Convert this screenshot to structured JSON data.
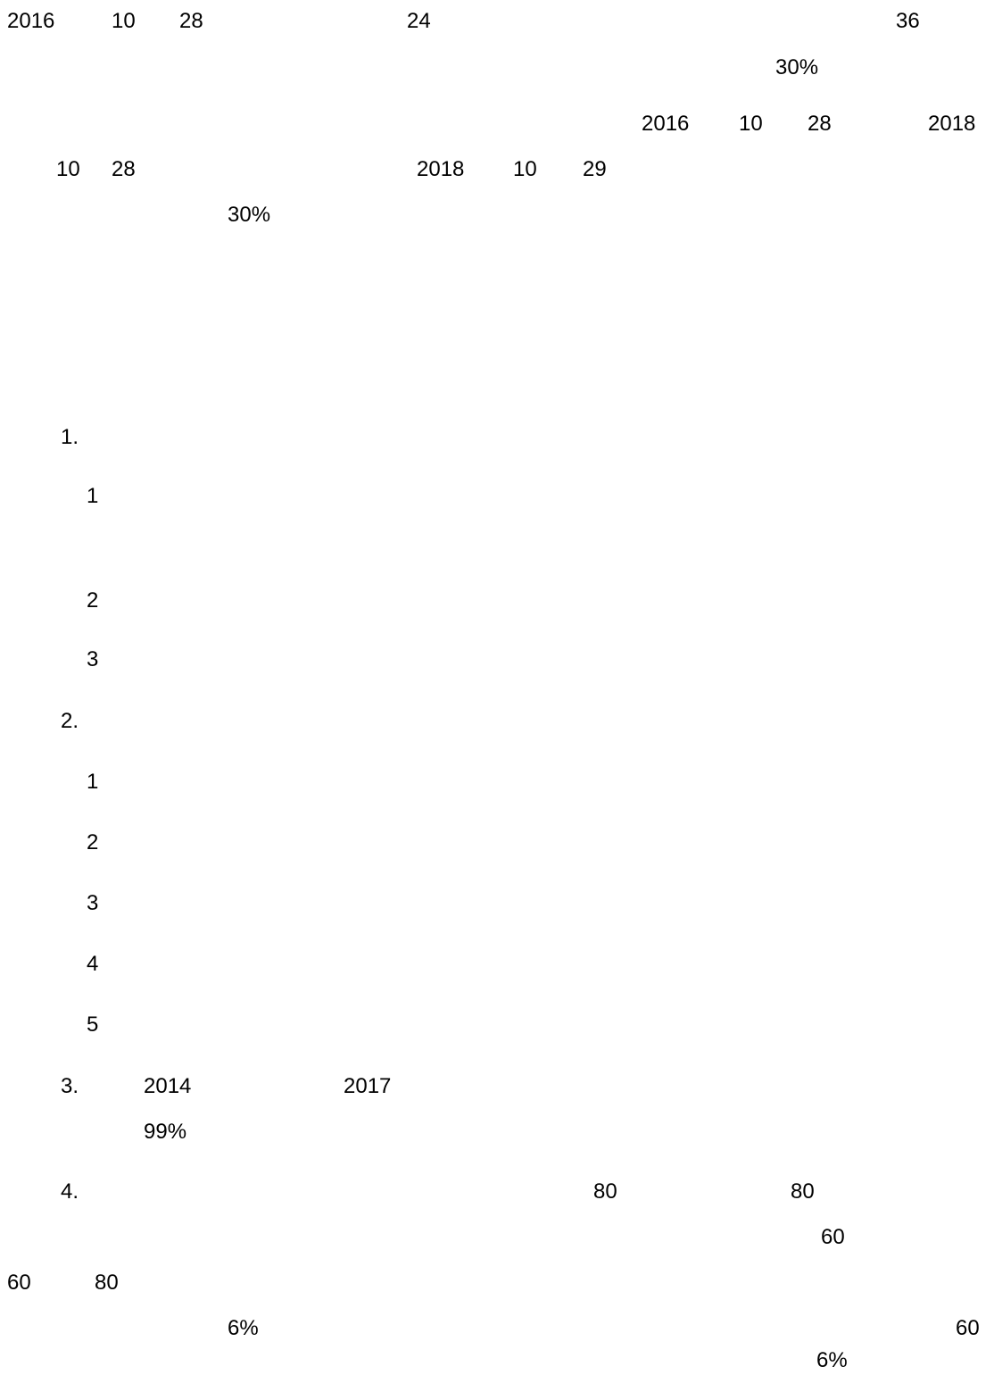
{
  "paragraph_1": {
    "line_1": [
      "2016",
      "10",
      "28",
      "24",
      "36"
    ],
    "line_2": [
      "30%"
    ],
    "line_3": [
      "2016",
      "10",
      "28",
      "2018"
    ],
    "line_4": [
      "10",
      "28",
      "2018",
      "10",
      "29"
    ],
    "line_5": [
      "30%"
    ]
  },
  "section_1": {
    "marker": "1.",
    "items": [
      "1",
      "2",
      "3"
    ]
  },
  "section_2": {
    "marker": "2.",
    "items": [
      "1",
      "2",
      "3",
      "4",
      "5"
    ]
  },
  "section_3": {
    "marker": "3.",
    "line_1": [
      "2014",
      "2017"
    ],
    "line_2": [
      "99%"
    ]
  },
  "section_4": {
    "marker": "4.",
    "line_1": [
      "80",
      "80"
    ],
    "line_2": [
      "60"
    ],
    "line_3": [
      "60",
      "80"
    ],
    "line_4": [
      "6%",
      "60"
    ],
    "line_5": [
      "6%"
    ]
  }
}
